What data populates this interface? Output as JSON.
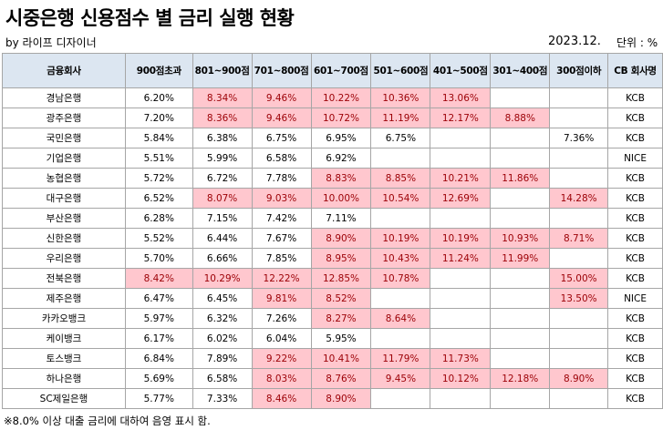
{
  "header": {
    "title": "시중은행 신용점수 별 금리 실행 현황",
    "byline": "by 라이프 디자이너",
    "date": "2023.12.",
    "unit": "단위 : %"
  },
  "highlight_threshold": 8.0,
  "highlight_color": "#ffc7ce",
  "highlight_text_color": "#9c0006",
  "header_bg_color": "#dce6f1",
  "table": {
    "columns": [
      "금융회사",
      "900점초과",
      "801~900점",
      "701~800점",
      "601~700점",
      "501~600점",
      "401~500점",
      "301~400점",
      "300점이하",
      "CB 회사명"
    ],
    "rows": [
      [
        "경남은행",
        "6.20%",
        "8.34%",
        "9.46%",
        "10.22%",
        "10.36%",
        "13.06%",
        "",
        "",
        "KCB"
      ],
      [
        "광주은행",
        "7.20%",
        "8.36%",
        "9.46%",
        "10.72%",
        "11.19%",
        "12.17%",
        "8.88%",
        "",
        "KCB"
      ],
      [
        "국민은행",
        "5.84%",
        "6.38%",
        "6.75%",
        "6.95%",
        "6.75%",
        "",
        "",
        "7.36%",
        "KCB"
      ],
      [
        "기업은행",
        "5.51%",
        "5.99%",
        "6.58%",
        "6.92%",
        "",
        "",
        "",
        "",
        "NICE"
      ],
      [
        "농협은행",
        "5.72%",
        "6.72%",
        "7.78%",
        "8.83%",
        "8.85%",
        "10.21%",
        "11.86%",
        "",
        "KCB"
      ],
      [
        "대구은행",
        "6.52%",
        "8.07%",
        "9.03%",
        "10.00%",
        "10.54%",
        "12.69%",
        "",
        "14.28%",
        "KCB"
      ],
      [
        "부산은행",
        "6.28%",
        "7.15%",
        "7.42%",
        "7.11%",
        "",
        "",
        "",
        "",
        "KCB"
      ],
      [
        "신한은행",
        "5.52%",
        "6.44%",
        "7.67%",
        "8.90%",
        "10.19%",
        "10.19%",
        "10.93%",
        "8.71%",
        "KCB"
      ],
      [
        "우리은행",
        "5.70%",
        "6.66%",
        "7.85%",
        "8.95%",
        "10.43%",
        "11.24%",
        "11.99%",
        "",
        "KCB"
      ],
      [
        "전북은행",
        "8.42%",
        "10.29%",
        "12.22%",
        "12.85%",
        "10.78%",
        "",
        "",
        "15.00%",
        "KCB"
      ],
      [
        "제주은행",
        "6.47%",
        "6.45%",
        "9.81%",
        "8.52%",
        "",
        "",
        "",
        "13.50%",
        "NICE"
      ],
      [
        "카카오뱅크",
        "5.97%",
        "6.32%",
        "7.26%",
        "8.27%",
        "8.64%",
        "",
        "",
        "",
        "KCB"
      ],
      [
        "케이뱅크",
        "6.17%",
        "6.02%",
        "6.04%",
        "5.95%",
        "",
        "",
        "",
        "",
        "KCB"
      ],
      [
        "토스뱅크",
        "6.84%",
        "7.89%",
        "9.22%",
        "10.41%",
        "11.79%",
        "11.73%",
        "",
        "",
        "KCB"
      ],
      [
        "하나은행",
        "5.69%",
        "6.58%",
        "8.03%",
        "8.76%",
        "9.45%",
        "10.12%",
        "12.18%",
        "8.90%",
        "KCB"
      ],
      [
        "SC제일은행",
        "5.77%",
        "7.33%",
        "8.46%",
        "8.90%",
        "",
        "",
        "",
        "",
        "KCB"
      ]
    ]
  },
  "note": "※8.0% 이상 대출 금리에 대하여 음영 표시 함."
}
